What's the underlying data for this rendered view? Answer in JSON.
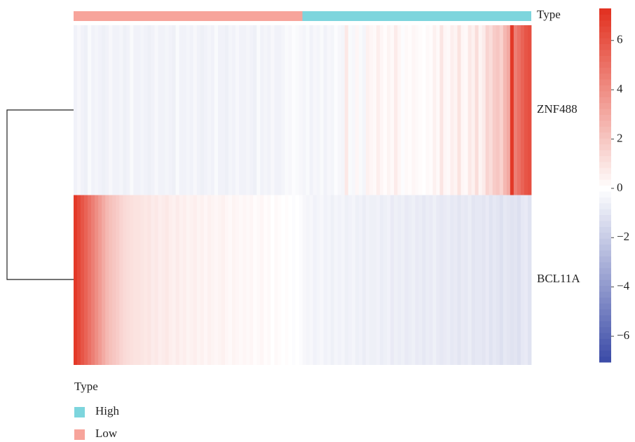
{
  "chart_data": {
    "type": "heatmap",
    "row_labels": [
      "ZNF488",
      "BCL11A"
    ],
    "values": [
      [
        -0.5,
        -0.3,
        -0.5,
        -0.6,
        -0.2,
        -0.5,
        -0.4,
        -0.5,
        -0.6,
        -0.5,
        -0.3,
        -0.5,
        -0.5,
        -0.4,
        -0.6,
        -0.5,
        -0.2,
        -0.5,
        -0.5,
        -0.4,
        -0.5,
        -0.6,
        -0.5,
        -0.3,
        -0.5,
        -0.5,
        -0.4,
        -0.5,
        -0.6,
        -0.2,
        -0.5,
        -0.5,
        -0.4,
        -0.5,
        -0.3,
        -0.5,
        -0.6,
        -0.5,
        -0.4,
        -0.5,
        -0.2,
        -0.5,
        -0.5,
        -0.6,
        -0.4,
        -0.5,
        -0.3,
        -0.5,
        -0.5,
        -0.4,
        -0.5,
        -0.6,
        -0.2,
        -0.5,
        -0.4,
        -0.5,
        -0.3,
        -0.5,
        -0.5,
        -0.4,
        -0.2,
        -0.3,
        -0.1,
        -0.2,
        -0.3,
        -0.4,
        -0.2,
        -0.5,
        -0.3,
        -0.4,
        -0.2,
        -0.5,
        -0.3,
        -0.4,
        -0.1,
        -0.3,
        -0.4,
        0.8,
        -0.2,
        -0.3,
        0.3,
        -0.2,
        -0.4,
        0.5,
        0.3,
        0.2,
        0.6,
        0.3,
        0.1,
        0.4,
        0.2,
        0.7,
        0.3,
        -0.1,
        0.2,
        0.1,
        0.3,
        0.2,
        0.1,
        0.0,
        0.2,
        0.1,
        0.5,
        0.2,
        0.9,
        0.3,
        0.2,
        0.6,
        0.4,
        1.0,
        0.3,
        0.2,
        0.8,
        0.5,
        1.2,
        0.4,
        0.7,
        1.5,
        1.2,
        1.8,
        2.0,
        1.6,
        2.5,
        3.0,
        7.0,
        4.5,
        5.0,
        5.5,
        6.0,
        6.2
      ],
      [
        7.0,
        6.5,
        6.0,
        5.5,
        5.0,
        4.5,
        4.0,
        3.5,
        3.0,
        2.5,
        2.2,
        2.0,
        1.8,
        1.5,
        1.3,
        1.2,
        1.1,
        1.0,
        1.0,
        0.9,
        0.8,
        0.9,
        0.7,
        0.8,
        0.6,
        0.7,
        0.8,
        0.6,
        0.5,
        0.7,
        0.5,
        0.6,
        0.4,
        0.5,
        0.6,
        0.4,
        0.5,
        0.3,
        0.5,
        0.4,
        0.3,
        0.4,
        0.5,
        0.3,
        0.2,
        0.4,
        0.3,
        0.2,
        0.3,
        0.2,
        0.3,
        0.1,
        0.2,
        0.3,
        0.1,
        0.2,
        0.0,
        0.2,
        0.1,
        0.0,
        0.1,
        0.0,
        -0.1,
        0.0,
        -0.1,
        -0.3,
        -0.4,
        -0.3,
        -0.5,
        -0.4,
        -0.3,
        -0.5,
        -0.4,
        -0.6,
        -0.4,
        -0.5,
        -0.4,
        -0.6,
        -0.5,
        -0.4,
        -0.6,
        -0.5,
        -0.7,
        -0.5,
        -0.6,
        -0.6,
        -0.5,
        -0.7,
        -0.6,
        -0.5,
        -0.8,
        -0.6,
        -0.7,
        -0.6,
        -0.8,
        -0.7,
        -0.6,
        -0.8,
        -0.7,
        -0.9,
        -0.7,
        -0.8,
        -0.6,
        -0.8,
        -0.9,
        -0.8,
        -0.7,
        -0.9,
        -0.8,
        -1.0,
        -0.8,
        -0.9,
        -0.7,
        -1.0,
        -0.9,
        -0.9,
        -1.0,
        -0.8,
        -1.1,
        -0.9,
        -1.0,
        -1.2,
        -0.9,
        -1.0,
        -1.1,
        -1.0,
        -1.2,
        -0.9,
        -0.8,
        -1.1
      ]
    ],
    "annotation": {
      "title": "Type",
      "groups": [
        {
          "name": "Low",
          "color": "#f7a49b",
          "n": 65
        },
        {
          "name": "High",
          "color": "#7dd5dd",
          "n": 65
        }
      ]
    },
    "colorscale": {
      "colors": [
        "#3a4aa6",
        "#ffffff",
        "#e2301f"
      ],
      "lim": [
        -7.05,
        7.3
      ],
      "ticks": [
        {
          "value": -6,
          "label": "−6"
        },
        {
          "value": -4,
          "label": "−4"
        },
        {
          "value": -2,
          "label": "−2"
        },
        0,
        2,
        4,
        6
      ]
    }
  }
}
